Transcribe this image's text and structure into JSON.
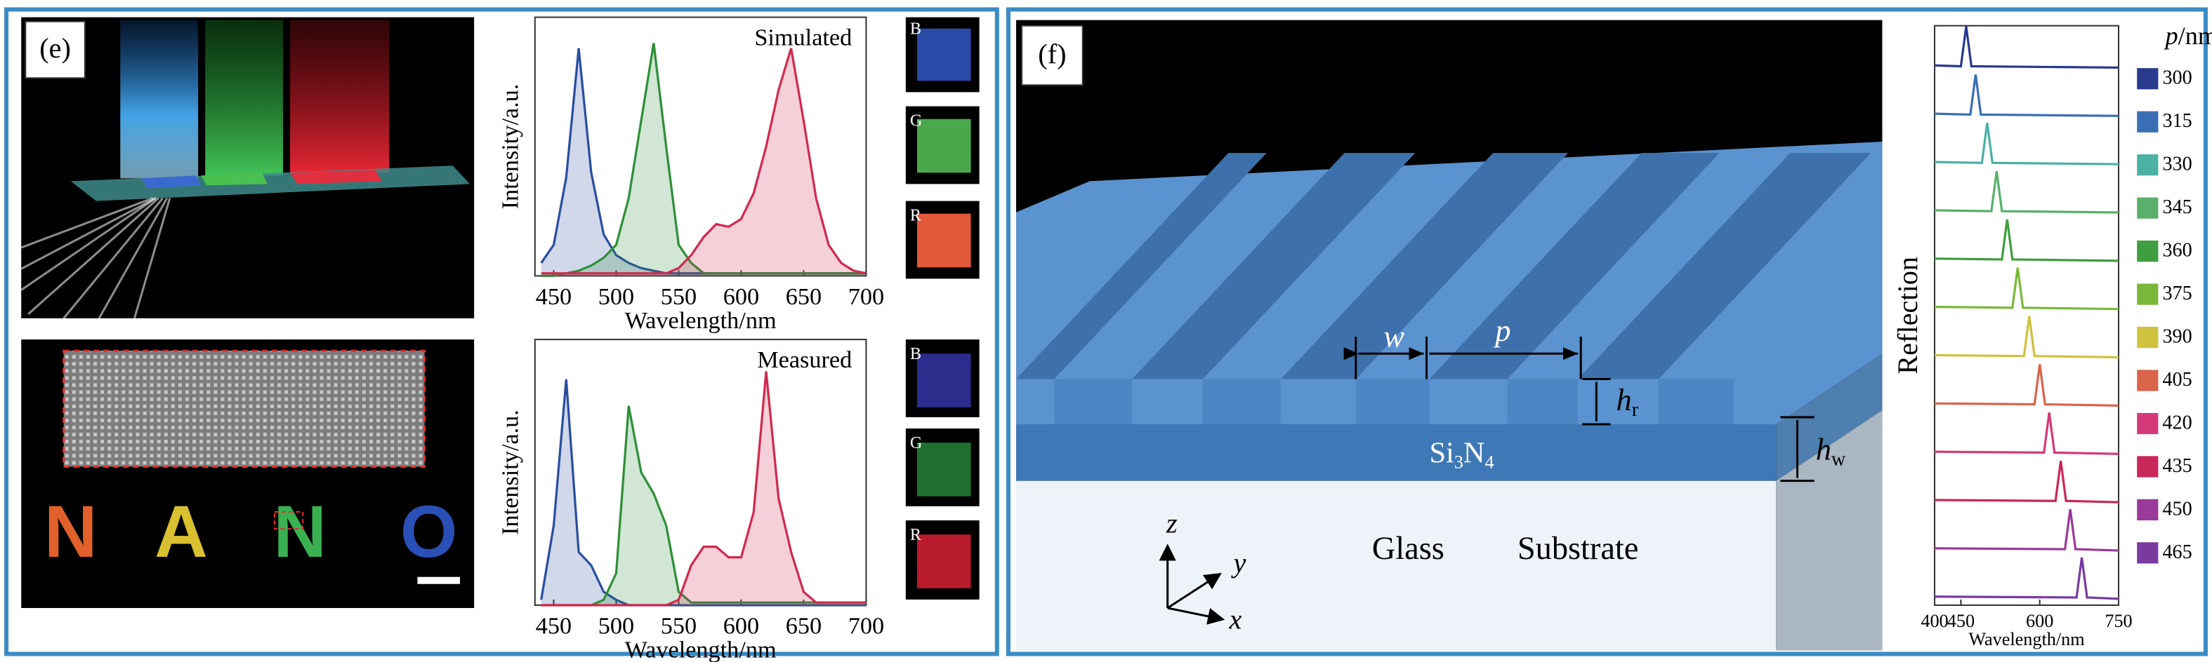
{
  "figure": {
    "panel_e_label": "(e)",
    "panel_f_label": "(f)",
    "letters": [
      "N",
      "A",
      "N",
      "O"
    ],
    "swatch_labels_top": [
      "B",
      "G",
      "R"
    ],
    "swatch_labels_bottom": [
      "B",
      "G",
      "R"
    ],
    "dims": {
      "w": "w",
      "p": "p",
      "hr": {
        "symbol": "h",
        "subscript": "r"
      },
      "hw": {
        "symbol": "h",
        "subscript": "w"
      },
      "layer": [
        "Si",
        "3",
        "N",
        "4"
      ],
      "glass": "Glass",
      "substrate": "Substrate",
      "axes": [
        "z",
        "y",
        "x"
      ]
    }
  },
  "chart_data": [
    {
      "type": "area",
      "title": "Simulated",
      "xlabel": "Wavelength/nm",
      "ylabel": "Intensity/a.u.",
      "xlim": [
        435,
        700
      ],
      "ylim": [
        0,
        1
      ],
      "xticks": [
        450,
        500,
        550,
        600,
        650,
        700
      ],
      "x": [
        440,
        450,
        460,
        470,
        480,
        490,
        500,
        510,
        520,
        530,
        540,
        550,
        560,
        570,
        580,
        590,
        600,
        610,
        620,
        630,
        640,
        650,
        660,
        670,
        680,
        690,
        700
      ],
      "series": [
        {
          "name": "B",
          "color": "#2a4fa0",
          "values": [
            0.05,
            0.12,
            0.38,
            0.88,
            0.4,
            0.16,
            0.08,
            0.05,
            0.03,
            0.02,
            0.01,
            0.01,
            0.01,
            0.01,
            0.01,
            0.01,
            0.01,
            0.01,
            0.01,
            0.01,
            0.01,
            0.01,
            0.01,
            0.01,
            0.01,
            0.01,
            0.01
          ]
        },
        {
          "name": "G",
          "color": "#2f8f3a",
          "values": [
            0,
            0,
            0.01,
            0.02,
            0.04,
            0.07,
            0.12,
            0.3,
            0.6,
            0.9,
            0.5,
            0.12,
            0.05,
            0.01,
            0.01,
            0.01,
            0.01,
            0.01,
            0.01,
            0.01,
            0.01,
            0.01,
            0.01,
            0.01,
            0.01,
            0.01,
            0.01
          ]
        },
        {
          "name": "R",
          "color": "#d02a50",
          "values": [
            0.01,
            0.01,
            0.01,
            0.01,
            0.01,
            0.01,
            0.01,
            0.01,
            0.01,
            0.01,
            0.01,
            0.03,
            0.08,
            0.15,
            0.2,
            0.19,
            0.22,
            0.32,
            0.5,
            0.72,
            0.88,
            0.6,
            0.3,
            0.12,
            0.05,
            0.02,
            0.01
          ]
        }
      ]
    },
    {
      "type": "area",
      "title": "Measured",
      "xlabel": "Wavelength/nm",
      "ylabel": "Intensity/a.u.",
      "xlim": [
        435,
        700
      ],
      "ylim": [
        0,
        1
      ],
      "xticks": [
        450,
        500,
        550,
        600,
        650,
        700
      ],
      "x": [
        440,
        450,
        460,
        470,
        480,
        490,
        500,
        510,
        520,
        530,
        540,
        550,
        560,
        570,
        580,
        590,
        600,
        610,
        620,
        630,
        640,
        650,
        660,
        670,
        680,
        690,
        700
      ],
      "series": [
        {
          "name": "B",
          "color": "#2a4fa0",
          "values": [
            0.02,
            0.3,
            0.85,
            0.2,
            0.15,
            0.05,
            0.02,
            0,
            0,
            0,
            0,
            0,
            0,
            0,
            0,
            0,
            0,
            0,
            0,
            0,
            0,
            0,
            0,
            0,
            0,
            0,
            0
          ]
        },
        {
          "name": "G",
          "color": "#2f8f3a",
          "values": [
            0,
            0,
            0,
            0,
            0,
            0.02,
            0.12,
            0.75,
            0.5,
            0.42,
            0.3,
            0.05,
            0.01,
            0.01,
            0.01,
            0.01,
            0.01,
            0.01,
            0.01,
            0.01,
            0.01,
            0.01,
            0.01,
            0.01,
            0.01,
            0.01,
            0.01
          ]
        },
        {
          "name": "R",
          "color": "#d02a50",
          "values": [
            0,
            0,
            0,
            0,
            0,
            0,
            0,
            0,
            0,
            0,
            0,
            0.02,
            0.15,
            0.22,
            0.22,
            0.18,
            0.18,
            0.35,
            0.88,
            0.4,
            0.2,
            0.05,
            0.01,
            0.01,
            0.01,
            0.01,
            0.01
          ]
        }
      ]
    },
    {
      "type": "line",
      "xlabel": "Wavelength/nm",
      "ylabel": "Reflection",
      "legend_title": [
        "p",
        "/nm"
      ],
      "xlim": [
        400,
        750
      ],
      "ylim": [
        0,
        1
      ],
      "xticks": [
        400,
        450,
        600,
        750
      ],
      "series": [
        {
          "name": "300",
          "color": "#2a3a8f",
          "x": [
            400,
            450,
            460,
            470,
            750
          ],
          "values": [
            0.1,
            0.08,
            1,
            0.08,
            0.05
          ]
        },
        {
          "name": "315",
          "color": "#3a6fb5",
          "x": [
            400,
            468,
            478,
            488,
            750
          ],
          "values": [
            0.1,
            0.08,
            1,
            0.08,
            0.05
          ]
        },
        {
          "name": "330",
          "color": "#4cb0a5",
          "x": [
            400,
            490,
            500,
            510,
            750
          ],
          "values": [
            0.1,
            0.08,
            1,
            0.08,
            0.05
          ]
        },
        {
          "name": "345",
          "color": "#58b06a",
          "x": [
            400,
            508,
            518,
            528,
            750
          ],
          "values": [
            0.1,
            0.08,
            1,
            0.08,
            0.05
          ]
        },
        {
          "name": "360",
          "color": "#3f9e3f",
          "x": [
            400,
            528,
            538,
            548,
            750
          ],
          "values": [
            0.1,
            0.08,
            1,
            0.08,
            0.05
          ]
        },
        {
          "name": "375",
          "color": "#7ab83a",
          "x": [
            400,
            548,
            558,
            568,
            750
          ],
          "values": [
            0.1,
            0.08,
            1,
            0.08,
            0.05
          ]
        },
        {
          "name": "390",
          "color": "#cfc23e",
          "x": [
            400,
            570,
            580,
            590,
            750
          ],
          "values": [
            0.1,
            0.08,
            1,
            0.08,
            0.05
          ]
        },
        {
          "name": "405",
          "color": "#d9644a",
          "x": [
            400,
            590,
            600,
            610,
            750
          ],
          "values": [
            0.1,
            0.08,
            1,
            0.08,
            0.05
          ]
        },
        {
          "name": "420",
          "color": "#d43a78",
          "x": [
            400,
            608,
            618,
            628,
            750
          ],
          "values": [
            0.1,
            0.08,
            1,
            0.08,
            0.05
          ]
        },
        {
          "name": "435",
          "color": "#c8285a",
          "x": [
            400,
            630,
            640,
            650,
            750
          ],
          "values": [
            0.1,
            0.08,
            1,
            0.08,
            0.05
          ]
        },
        {
          "name": "450",
          "color": "#9a3a9a",
          "x": [
            400,
            648,
            658,
            668,
            750
          ],
          "values": [
            0.1,
            0.08,
            1,
            0.08,
            0.05
          ]
        },
        {
          "name": "465",
          "color": "#7a3aa0",
          "x": [
            400,
            670,
            680,
            690,
            750
          ],
          "values": [
            0.1,
            0.08,
            1,
            0.08,
            0.05
          ]
        }
      ]
    }
  ]
}
